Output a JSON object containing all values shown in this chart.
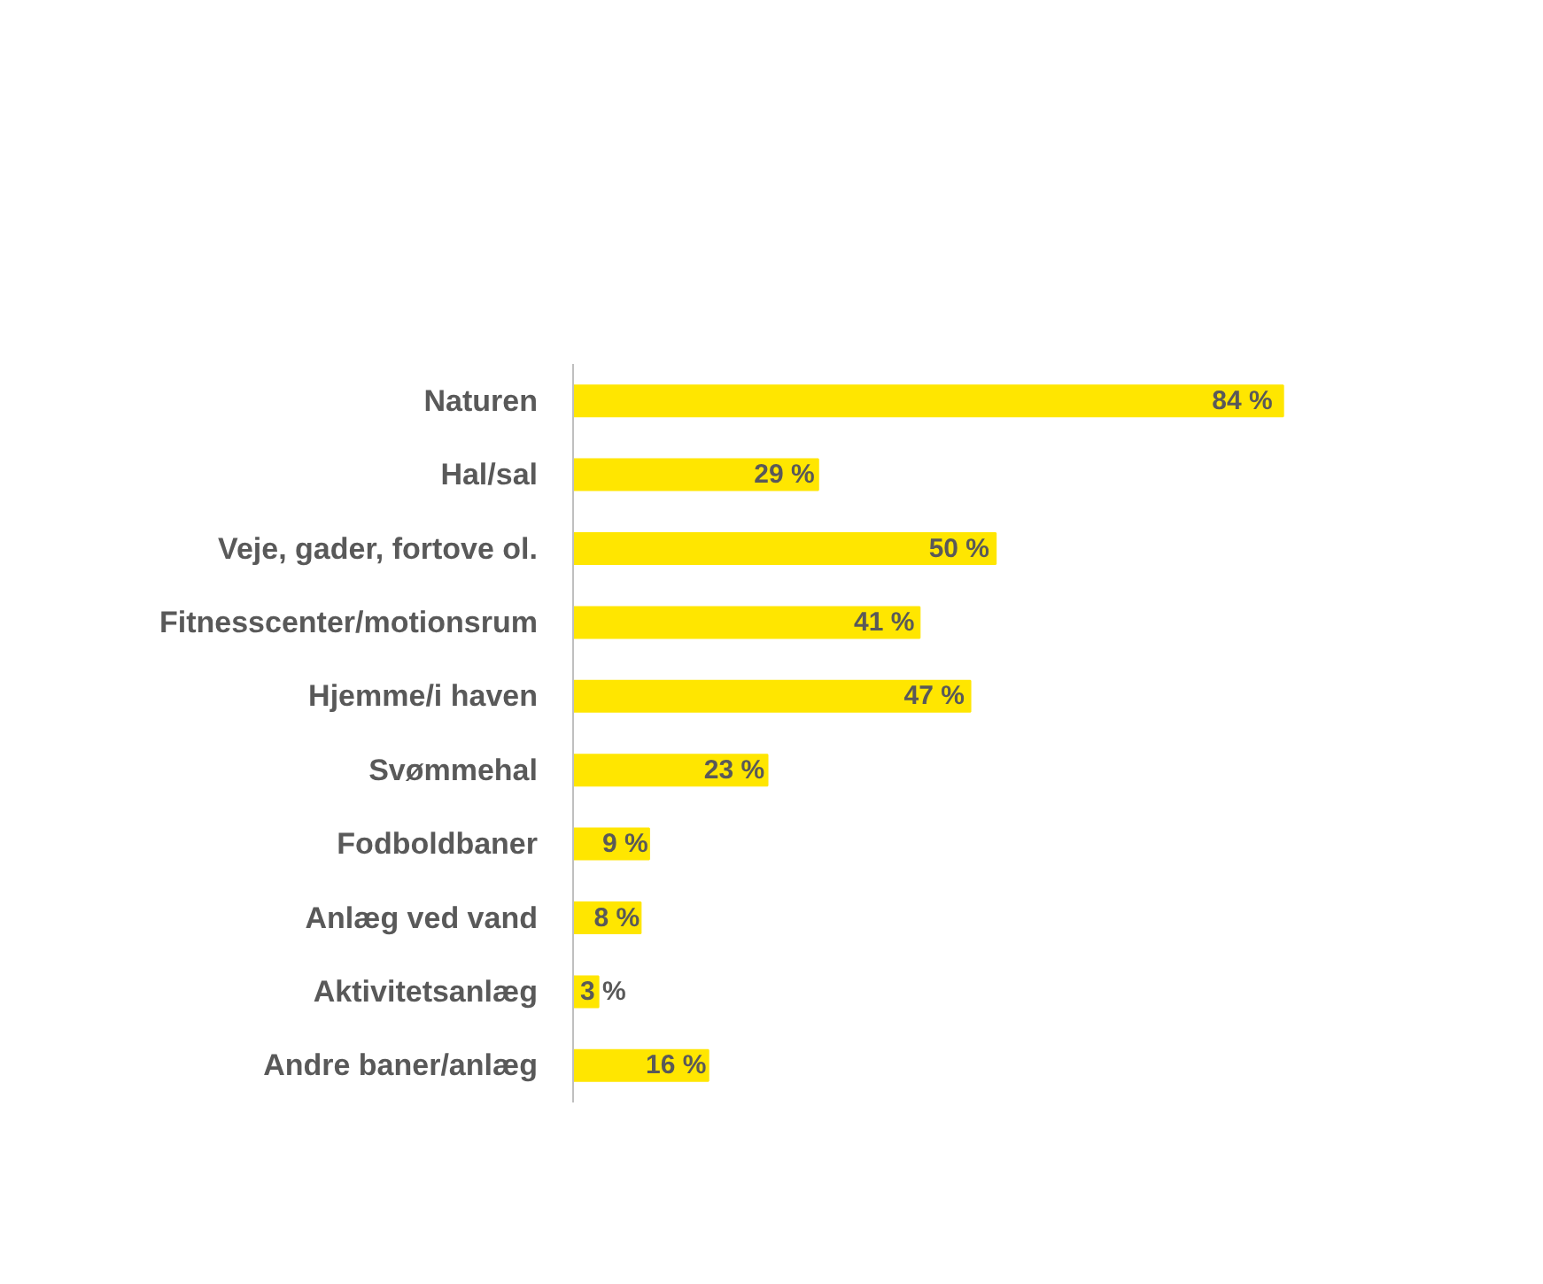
{
  "chart_data": {
    "type": "bar",
    "orientation": "horizontal",
    "categories": [
      "Naturen",
      "Hal/sal",
      "Veje, gader, fortove ol.",
      "Fitnesscenter/motionsrum",
      "Hjemme/i haven",
      "Svømmehal",
      "Fodboldbaner",
      "Anlæg ved vand",
      "Aktivitetsanlæg",
      "Andre baner/anlæg"
    ],
    "values": [
      84,
      29,
      50,
      41,
      47,
      23,
      9,
      8,
      3,
      16
    ],
    "value_labels": [
      "84 %",
      "29 %",
      "50 %",
      "41 %",
      "47 %",
      "23 %",
      "9 %",
      "8 %",
      "3 %",
      "16 %"
    ],
    "color": "#ffe600",
    "grid": false
  }
}
